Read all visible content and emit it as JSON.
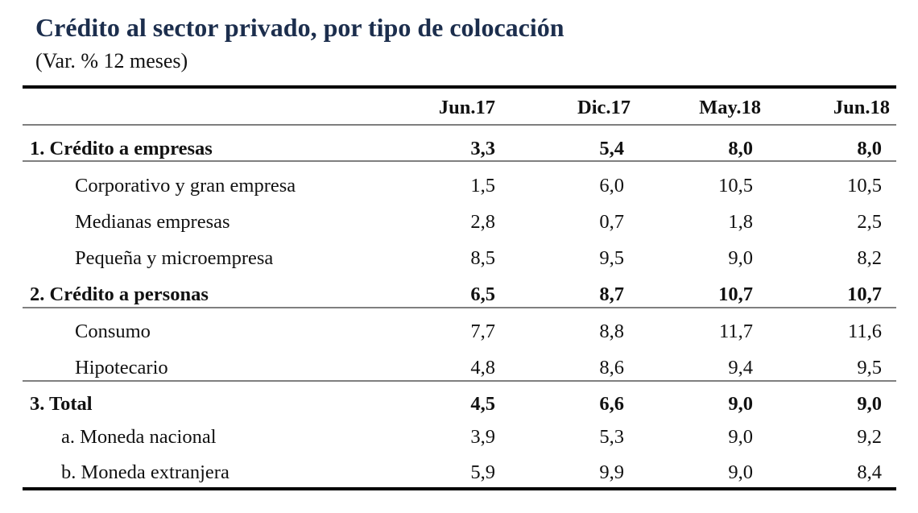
{
  "title": "Crédito al sector privado, por tipo de colocación",
  "subtitle": "(Var. % 12 meses)",
  "columns": [
    "Jun.17",
    "Dic.17",
    "May.18",
    "Jun.18"
  ],
  "rows": [
    {
      "label": "1.  Crédito a empresas",
      "values": [
        "3,3",
        "5,4",
        "8,0",
        "8,0"
      ]
    },
    {
      "label": "Corporativo y gran empresa",
      "values": [
        "1,5",
        "6,0",
        "10,5",
        "10,5"
      ]
    },
    {
      "label": "Medianas empresas",
      "values": [
        "2,8",
        "0,7",
        "1,8",
        "2,5"
      ]
    },
    {
      "label": "Pequeña y microempresa",
      "values": [
        "8,5",
        "9,5",
        "9,0",
        "8,2"
      ]
    },
    {
      "label": "2.  Crédito a personas",
      "values": [
        "6,5",
        "8,7",
        "10,7",
        "10,7"
      ]
    },
    {
      "label": "Consumo",
      "values": [
        "7,7",
        "8,8",
        "11,7",
        "11,6"
      ]
    },
    {
      "label": "Hipotecario",
      "values": [
        "4,8",
        "8,6",
        "9,4",
        "9,5"
      ]
    },
    {
      "label": "3.  Total",
      "values": [
        "4,5",
        "6,6",
        "9,0",
        "9,0"
      ]
    },
    {
      "label": "a. Moneda nacional",
      "values": [
        "3,9",
        "5,3",
        "9,0",
        "9,2"
      ]
    },
    {
      "label": "b. Moneda extranjera",
      "values": [
        "5,9",
        "9,9",
        "9,0",
        "8,4"
      ]
    }
  ]
}
